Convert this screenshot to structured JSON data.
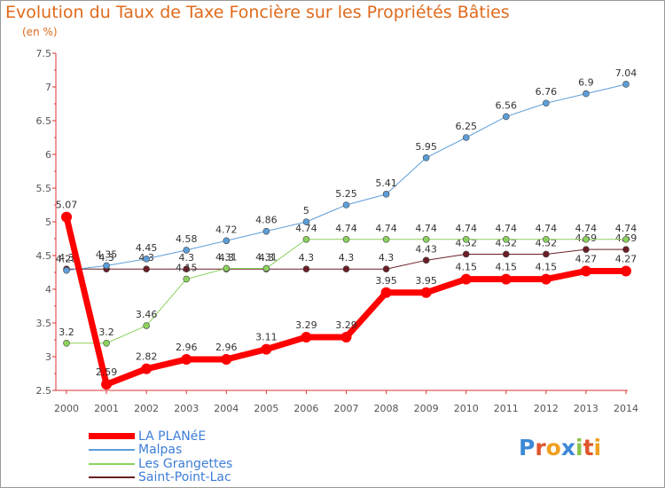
{
  "chart_data": {
    "type": "line",
    "title": "Evolution du Taux de Taxe Foncière sur les Propriétés Bâties",
    "ylabel": "(en %)",
    "xlabel": "",
    "x": [
      2000,
      2001,
      2002,
      2003,
      2004,
      2005,
      2006,
      2007,
      2008,
      2009,
      2010,
      2011,
      2012,
      2013,
      2014
    ],
    "ylim": [
      2.5,
      7.5
    ],
    "yticks": [
      "2.5",
      "3",
      "3.5",
      "4",
      "4.5",
      "5",
      "5.5",
      "6",
      "6.5",
      "7",
      "7.5"
    ],
    "series": [
      {
        "name": "Saint-Point-Lac",
        "color": "#6b1e25",
        "width": 1,
        "values": [
          4.3,
          4.3,
          4.3,
          4.3,
          4.3,
          4.3,
          4.3,
          4.3,
          4.3,
          4.43,
          4.52,
          4.52,
          4.52,
          4.59,
          4.59
        ],
        "labels": [
          "4.3",
          "4.3",
          "4.3",
          "4.3",
          "4.3",
          "4.3",
          "4.3",
          "4.3",
          "4.3",
          "4.43",
          "4.52",
          "4.52",
          "4.52",
          "4.59",
          "4.59"
        ]
      },
      {
        "name": "Les Grangettes",
        "color": "#8bd15e",
        "width": 1,
        "values": [
          3.2,
          3.2,
          3.46,
          4.15,
          4.31,
          4.31,
          4.74,
          4.74,
          4.74,
          4.74,
          4.74,
          4.74,
          4.74,
          4.74,
          4.74
        ],
        "labels": [
          "3.2",
          "3.2",
          "3.46",
          "4.15",
          "4.31",
          "4.31",
          "4.74",
          "4.74",
          "4.74",
          "4.74",
          "4.74",
          "4.74",
          "4.74",
          "4.74",
          "4.74"
        ]
      },
      {
        "name": "Malpas",
        "color": "#5d9ed8",
        "width": 1,
        "values": [
          4.28,
          4.35,
          4.45,
          4.58,
          4.72,
          4.86,
          5.0,
          5.25,
          5.41,
          5.95,
          6.25,
          6.56,
          6.76,
          6.9,
          7.04
        ],
        "labels": [
          "4.28",
          "4.35",
          "4.45",
          "4.58",
          "4.72",
          "4.86",
          "5",
          "5.25",
          "5.41",
          "5.95",
          "6.25",
          "6.56",
          "6.76",
          "6.9",
          "7.04"
        ]
      },
      {
        "name": "LA PLANéE",
        "color": "#ff0000",
        "width": 7,
        "values": [
          5.07,
          2.59,
          2.82,
          2.96,
          2.96,
          3.11,
          3.29,
          3.29,
          3.95,
          3.95,
          4.15,
          4.15,
          4.15,
          4.27,
          4.27
        ],
        "labels": [
          "5.07",
          "2.59",
          "2.82",
          "2.96",
          "2.96",
          "3.11",
          "3.29",
          "3.29",
          "3.95",
          "3.95",
          "4.15",
          "4.15",
          "4.15",
          "4.27",
          "4.27"
        ]
      }
    ],
    "legend": [
      "LA PLANéE",
      "Malpas",
      "Les Grangettes",
      "Saint-Point-Lac"
    ],
    "legend_position": "bottom-left",
    "grid": false
  },
  "logo": {
    "letters": [
      "P",
      "r",
      "o",
      "x",
      "i",
      "t",
      "i"
    ],
    "colors": [
      "#3d89d6",
      "#e0552b",
      "#f0a020",
      "#3d89d6",
      "#8bc34a",
      "#e0552b",
      "#f0a020"
    ]
  }
}
